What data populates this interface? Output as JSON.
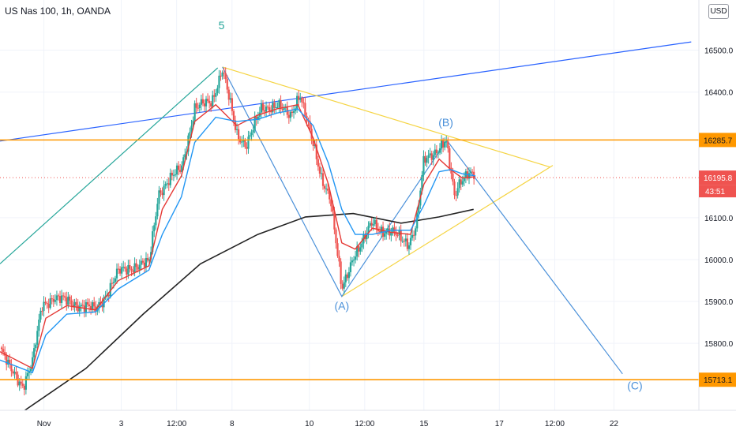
{
  "symbol_title": "US Nas 100, 1h, OANDA",
  "currency_button": "USD",
  "chart_data": {
    "type": "candlestick",
    "title": "US Nas 100, 1h, OANDA",
    "ylim": [
      15640,
      16620
    ],
    "y_ticks": [
      "15800.0",
      "15900.0",
      "16000.0",
      "16100.0",
      "16400.0",
      "16500.0"
    ],
    "x_tick_labels": [
      "Nov",
      "3",
      "12:00",
      "8",
      "10",
      "12:00",
      "15",
      "17",
      "12:00",
      "22"
    ],
    "price_labels": [
      {
        "text": "16285.7",
        "value": 16285.7,
        "color": "#ff9800"
      },
      {
        "text": "16195.8",
        "value": 16195.8,
        "color": "#ef5350"
      },
      {
        "text": "15713.1",
        "value": 15713.1,
        "color": "#ff9800"
      }
    ],
    "countdown": "43:51",
    "wave_labels": [
      {
        "text": "5",
        "x": 11.6,
        "y": 16550,
        "color": "#26a69a"
      },
      {
        "text": "(B)",
        "x": 23.35,
        "y": 16318,
        "color": "#4a90d9"
      },
      {
        "text": "(A)",
        "x": 17.9,
        "y": 15880,
        "color": "#4a90d9"
      },
      {
        "text": "(C)",
        "x": 33.25,
        "y": 15690,
        "color": "#4a90d9"
      }
    ],
    "horizontal_lines": [
      {
        "value": 16285.7,
        "color": "#ff9800"
      },
      {
        "value": 15713.1,
        "color": "#ff9800"
      }
    ],
    "trend_lines": [
      {
        "color": "#2962ff",
        "points": [
          [
            0,
            16283
          ],
          [
            36.2,
            16520
          ]
        ]
      },
      {
        "color": "#26a69a",
        "points": [
          [
            0,
            15990
          ],
          [
            11.4,
            16458
          ]
        ]
      },
      {
        "color": "#f5d442",
        "points": [
          [
            11.65,
            16460
          ],
          [
            28.8,
            16221
          ]
        ]
      },
      {
        "color": "#f5d442",
        "points": [
          [
            17.9,
            15912
          ],
          [
            28.95,
            16225
          ]
        ]
      },
      {
        "color": "#4a90d9",
        "points": [
          [
            11.65,
            16460
          ],
          [
            17.9,
            15912
          ],
          [
            23.4,
            16285
          ],
          [
            32.6,
            15727
          ]
        ]
      },
      {
        "color": "#222222",
        "points": [
          [
            1.3,
            15640
          ],
          [
            4.5,
            15740
          ],
          [
            7.5,
            15870
          ],
          [
            10.5,
            15990
          ],
          [
            13.5,
            16060
          ],
          [
            16,
            16102
          ],
          [
            18.5,
            16110
          ],
          [
            21,
            16087
          ],
          [
            23,
            16102
          ],
          [
            24.8,
            16120
          ]
        ]
      }
    ],
    "close_path": [
      [
        0,
        15790
      ],
      [
        0.5,
        15740
      ],
      [
        1.2,
        15700
      ],
      [
        1.7,
        15755
      ],
      [
        2.2,
        15890
      ],
      [
        2.8,
        15910
      ],
      [
        3.5,
        15900
      ],
      [
        4.3,
        15890
      ],
      [
        5,
        15880
      ],
      [
        5.6,
        15920
      ],
      [
        6.2,
        15970
      ],
      [
        7,
        15985
      ],
      [
        7.8,
        15990
      ],
      [
        8.3,
        16160
      ],
      [
        8.8,
        16185
      ],
      [
        9.5,
        16220
      ],
      [
        10.2,
        16360
      ],
      [
        11.1,
        16380
      ],
      [
        11.65,
        16455
      ],
      [
        12.4,
        16300
      ],
      [
        12.9,
        16275
      ],
      [
        13.7,
        16360
      ],
      [
        14.5,
        16370
      ],
      [
        15.2,
        16340
      ],
      [
        15.7,
        16400
      ],
      [
        16.2,
        16310
      ],
      [
        16.8,
        16200
      ],
      [
        17.3,
        16150
      ],
      [
        17.9,
        15925
      ],
      [
        18.5,
        16010
      ],
      [
        19,
        16040
      ],
      [
        19.5,
        16090
      ],
      [
        20,
        16070
      ],
      [
        20.7,
        16060
      ],
      [
        21.4,
        16040
      ],
      [
        21.8,
        16080
      ],
      [
        22.2,
        16235
      ],
      [
        22.8,
        16260
      ],
      [
        23.35,
        16283
      ],
      [
        23.8,
        16150
      ],
      [
        24.1,
        16190
      ],
      [
        24.5,
        16210
      ],
      [
        24.9,
        16196
      ]
    ],
    "ema_fast_path": [
      [
        0,
        15780
      ],
      [
        1.7,
        15740
      ],
      [
        2.4,
        15860
      ],
      [
        3.5,
        15890
      ],
      [
        5,
        15880
      ],
      [
        6.2,
        15950
      ],
      [
        7.8,
        15985
      ],
      [
        8.5,
        16120
      ],
      [
        9.5,
        16200
      ],
      [
        10.2,
        16330
      ],
      [
        11.3,
        16370
      ],
      [
        12.4,
        16320
      ],
      [
        13.5,
        16345
      ],
      [
        14.5,
        16360
      ],
      [
        15.6,
        16370
      ],
      [
        16.4,
        16290
      ],
      [
        17.2,
        16180
      ],
      [
        17.9,
        16040
      ],
      [
        18.6,
        16025
      ],
      [
        19.5,
        16075
      ],
      [
        20.5,
        16065
      ],
      [
        21.5,
        16060
      ],
      [
        22.2,
        16180
      ],
      [
        23,
        16240
      ],
      [
        23.6,
        16215
      ],
      [
        24.2,
        16195
      ],
      [
        24.9,
        16198
      ]
    ],
    "ema_slow_path": [
      [
        0,
        15760
      ],
      [
        1.7,
        15730
      ],
      [
        2.4,
        15820
      ],
      [
        3.5,
        15870
      ],
      [
        5,
        15875
      ],
      [
        6.2,
        15930
      ],
      [
        7.8,
        15975
      ],
      [
        8.5,
        16060
      ],
      [
        9.5,
        16150
      ],
      [
        10.2,
        16280
      ],
      [
        11.3,
        16340
      ],
      [
        12.4,
        16330
      ],
      [
        13.5,
        16335
      ],
      [
        14.5,
        16350
      ],
      [
        15.6,
        16360
      ],
      [
        16.4,
        16320
      ],
      [
        17.2,
        16230
      ],
      [
        17.9,
        16120
      ],
      [
        18.6,
        16060
      ],
      [
        19.5,
        16060
      ],
      [
        20.5,
        16070
      ],
      [
        21.5,
        16070
      ],
      [
        22.2,
        16130
      ],
      [
        23,
        16210
      ],
      [
        23.6,
        16215
      ],
      [
        24.2,
        16205
      ],
      [
        24.9,
        16200
      ]
    ],
    "colors": {
      "up": "#26a69a",
      "down": "#ef5350",
      "ema_fast": "#e53935",
      "ema_slow": "#2196f3",
      "ma_long": "#222222",
      "axis_text": "#131722",
      "grid": "#f0f3fa"
    }
  }
}
